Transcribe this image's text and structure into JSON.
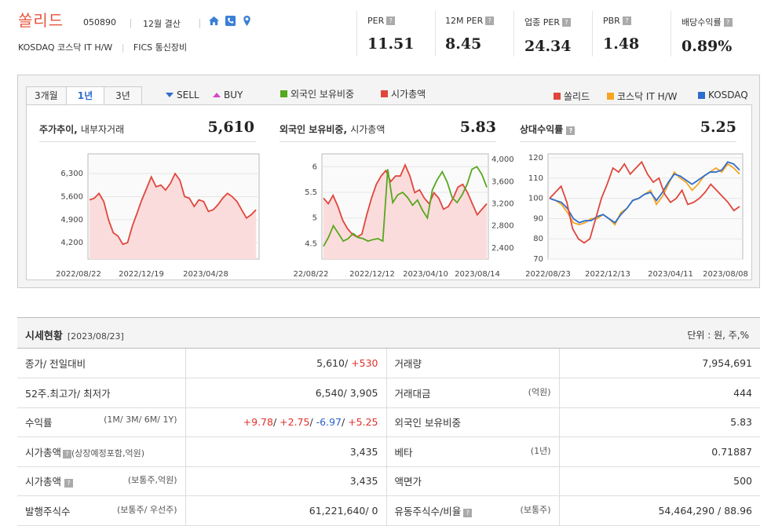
{
  "header": {
    "company": "쏠리드",
    "code": "050890",
    "settlement": "12월 결산",
    "market": "KOSDAQ  코스닥 IT H/W",
    "sector": "FICS 통신장비",
    "icons": [
      "home-icon",
      "phone-icon",
      "location-icon"
    ]
  },
  "metrics": [
    {
      "label": "PER",
      "value": "11.51"
    },
    {
      "label": "12M PER",
      "value": "8.45"
    },
    {
      "label": "업종 PER",
      "value": "24.34"
    },
    {
      "label": "PBR",
      "value": "1.48"
    },
    {
      "label": "배당수익률",
      "value": "0.89%"
    }
  ],
  "chart_controls": {
    "tabs": [
      "3개월",
      "1년",
      "3년"
    ],
    "active_tab": "1년",
    "sell": "SELL",
    "buy": "BUY",
    "legend_mid": [
      {
        "label": "외국인 보유비중",
        "color": "#56a81e"
      },
      {
        "label": "시가총액",
        "color": "#e0463c"
      }
    ],
    "legend_right": [
      {
        "label": "쏠리드",
        "color": "#e0463c"
      },
      {
        "label": "코스닥 IT H/W",
        "color": "#f5a623"
      },
      {
        "label": "KOSDAQ",
        "color": "#2d6dcc"
      }
    ]
  },
  "panels": {
    "p1": {
      "title": "주가추이",
      "title_sub": "내부자거래",
      "value": "5,610"
    },
    "p2": {
      "title": "외국인 보유비중",
      "title_sub": "시가총액",
      "value": "5.83"
    },
    "p3": {
      "title": "상대수익률",
      "value": "5.25"
    }
  },
  "chart_data": [
    {
      "type": "area",
      "title": "주가추이",
      "x_ticks": [
        "2022/08/22",
        "2022/12/19",
        "2023/04/28"
      ],
      "y_ticks": [
        "6,300",
        "5,600",
        "4,900",
        "4,200"
      ],
      "ylim": [
        3700,
        6900
      ],
      "series": [
        {
          "values": [
            5500,
            5550,
            5700,
            5450,
            4900,
            4500,
            4400,
            4150,
            4200,
            4700,
            5100,
            5500,
            5850,
            6200,
            5900,
            5950,
            5800,
            6000,
            6300,
            6100,
            5600,
            5550,
            5300,
            5500,
            5450,
            5150,
            5200,
            5350,
            5550,
            5700,
            5600,
            5450,
            5200,
            4950,
            5050,
            5200
          ]
        }
      ]
    },
    {
      "type": "line",
      "title": "외국인 보유비중",
      "x_ticks": [
        "22/08/22",
        "2022/12/12",
        "2023/04/10",
        "2023/08/14"
      ],
      "y_ticks_left": [
        "6",
        "5.5",
        "5",
        "4.5"
      ],
      "y_ticks_right": [
        "4,000",
        "3,600",
        "3,200",
        "2,800",
        "2,400"
      ],
      "ylim_left": [
        4.2,
        6.25
      ],
      "ylim_right": [
        2200,
        4100
      ],
      "series": [
        {
          "name": "외국인 보유비중",
          "color": "#56a81e",
          "values": [
            4.45,
            4.62,
            4.85,
            4.7,
            4.55,
            4.6,
            4.7,
            4.62,
            4.6,
            4.55,
            4.58,
            4.6,
            4.55,
            5.95,
            5.3,
            5.45,
            5.5,
            5.4,
            5.25,
            5.35,
            5.15,
            5.0,
            5.55,
            5.75,
            5.9,
            5.7,
            5.4,
            5.3,
            5.45,
            5.65,
            5.95,
            6.0,
            5.85,
            5.6
          ]
        },
        {
          "name": "시가총액",
          "color": "#e0463c",
          "values": [
            3300,
            3200,
            3350,
            3150,
            2900,
            2750,
            2650,
            2600,
            2650,
            3000,
            3300,
            3550,
            3700,
            3800,
            3600,
            3700,
            3700,
            3900,
            3700,
            3400,
            3450,
            3300,
            3200,
            3400,
            3300,
            3100,
            3150,
            3300,
            3500,
            3550,
            3400,
            3200,
            3000,
            3100,
            3200
          ]
        }
      ]
    },
    {
      "type": "line",
      "title": "상대수익률",
      "x_ticks": [
        "2022/08/23",
        "2022/12/13",
        "2023/04/11",
        "2023/08/08"
      ],
      "y_ticks": [
        "120",
        "110",
        "100",
        "90",
        "80",
        "70"
      ],
      "ylim": [
        70,
        122
      ],
      "series": [
        {
          "name": "쏠리드",
          "color": "#e0463c",
          "values": [
            100,
            103,
            106,
            98,
            85,
            80,
            78,
            80,
            90,
            100,
            107,
            115,
            113,
            117,
            112,
            115,
            118,
            112,
            108,
            110,
            102,
            98,
            100,
            104,
            97,
            98,
            100,
            103,
            107,
            104,
            101,
            98,
            94,
            96
          ]
        },
        {
          "name": "코스닥 IT H/W",
          "color": "#f5a623",
          "values": [
            100,
            99,
            97,
            93,
            88,
            87,
            88,
            90,
            90,
            92,
            90,
            87,
            93,
            95,
            99,
            100,
            102,
            104,
            97,
            101,
            107,
            113,
            110,
            108,
            104,
            107,
            111,
            113,
            115,
            113,
            117,
            115,
            112
          ]
        },
        {
          "name": "KOSDAQ",
          "color": "#2d6dcc",
          "values": [
            100,
            99,
            98,
            95,
            90,
            88,
            89,
            89,
            91,
            92,
            90,
            88,
            92,
            95,
            99,
            100,
            102,
            103,
            99,
            103,
            108,
            112,
            111,
            109,
            107,
            109,
            111,
            113,
            113,
            114,
            118,
            117,
            114
          ]
        }
      ]
    }
  ],
  "price_table": {
    "title": "시세현황",
    "date": "[2023/08/23]",
    "unit": "단위 : 원, 주,%",
    "rows": [
      {
        "l1": "종가/ 전일대비",
        "l1sub": "",
        "v1a": "5,610/ ",
        "v1b": "+530",
        "l2": "거래량",
        "l2sub": "",
        "v2": "7,954,691"
      },
      {
        "l1": "52주.최고가/ 최저가",
        "l1sub": "",
        "v1a": "6,540/ 3,905",
        "v1b": "",
        "l2": "거래대금",
        "l2sub": "(억원)",
        "v2": "444"
      },
      {
        "l1": "수익률",
        "l1sub": "(1M/ 3M/ 6M/ 1Y)",
        "v1a": "",
        "v1b": "",
        "l2": "외국인 보유비중",
        "l2sub": "",
        "v2": "5.83"
      },
      {
        "l1": "시가총액",
        "l1sub": "(상장예정포함,억원)",
        "v1a": "3,435",
        "v1b": "",
        "l2": "베타",
        "l2sub": "(1년)",
        "v2": "0.71887"
      },
      {
        "l1": "시가총액",
        "l1sub": "(보통주,억원)",
        "v1a": "3,435",
        "v1b": "",
        "l2": "액면가",
        "l2sub": "",
        "v2": "500"
      },
      {
        "l1": "발행주식수",
        "l1sub": "(보통주/ 우선주)",
        "v1a": "61,221,640/ 0",
        "v1b": "",
        "l2": "유동주식수/비율",
        "l2sub": "(보통주)",
        "v2": "54,464,290 / 88.96"
      }
    ],
    "returns": [
      {
        "v": "+9.78",
        "c": "red"
      },
      {
        "v": "+2.75",
        "c": "red"
      },
      {
        "v": "-6.97",
        "c": "blue"
      },
      {
        "v": "+5.25",
        "c": "red"
      }
    ]
  }
}
